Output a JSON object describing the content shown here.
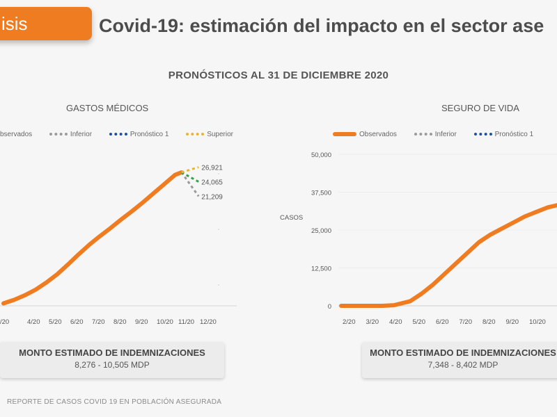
{
  "header": {
    "tab_label": "isis",
    "title": "Covid-19: estimación del impacto en el sector ase",
    "subtitle": "PRONÓSTICOS AL 31 DE DICIEMBRE 2020"
  },
  "footer": "REPORTE DE CASOS COVID 19 EN POBLACIÓN ASEGURADA",
  "colors": {
    "observed": "#f07c21",
    "inferior": "#9a9a9a",
    "pronostico": "#1f4fa0",
    "superior": "#e6b62d",
    "green": "#3aa046"
  },
  "chart_data": [
    {
      "type": "line",
      "title": "GASTOS MÉDICOS",
      "legend": [
        "bservados",
        "Inferior",
        "Pronóstico 1",
        "Superior"
      ],
      "x_tick_labels": [
        "/20",
        "4/20",
        "5/20",
        "6/20",
        "7/20",
        "8/20",
        "9/20",
        "10/20",
        "11/20",
        "12/20"
      ],
      "series": [
        {
          "name": "bservados",
          "x": [
            0,
            0.5,
            1,
            1.5,
            2,
            2.5,
            3,
            3.5,
            4,
            4.5,
            5,
            5.5,
            6,
            6.5,
            7,
            7.5,
            8,
            8.3
          ],
          "y": [
            200,
            900,
            1800,
            2900,
            4300,
            5900,
            7800,
            9800,
            11700,
            13400,
            15000,
            16700,
            18300,
            20000,
            21800,
            23600,
            25400,
            25900
          ]
        },
        {
          "name": "Inferior",
          "x": [
            8.3,
            9.1
          ],
          "y": [
            25900,
            21209
          ],
          "end_label": "21,209"
        },
        {
          "name": "Pronóstico 1",
          "x": [
            8.3,
            9.1
          ],
          "y": [
            25900,
            24065
          ],
          "end_label": "24,065"
        },
        {
          "name": "Superior",
          "x": [
            8.3,
            9.1
          ],
          "y": [
            25900,
            26921
          ],
          "end_label": "26,921"
        }
      ],
      "indemnizaciones": {
        "label": "MONTO ESTIMADO DE INDEMNIZACIONES",
        "value": "8,276 - 10,505 MDP"
      }
    },
    {
      "type": "line",
      "title": "SEGURO DE VIDA",
      "legend": [
        "Observados",
        "Inferior",
        "Pronóstico 1"
      ],
      "ylabel": "CASOS",
      "ylim": [
        0,
        50000
      ],
      "y_tick_labels": [
        "50,000",
        "37,500",
        "25,000",
        "12,500",
        "0"
      ],
      "x_tick_labels": [
        "2/20",
        "3/20",
        "4/20",
        "5/20",
        "6/20",
        "7/20",
        "8/20",
        "9/20",
        "10/20"
      ],
      "series": [
        {
          "name": "Observados",
          "x": [
            0,
            1,
            1.8,
            2.3,
            3,
            3.5,
            4,
            4.5,
            5,
            5.5,
            6,
            6.5,
            7,
            7.5,
            8,
            8.5,
            9,
            9.4
          ],
          "y": [
            0,
            0,
            0,
            200,
            1500,
            4000,
            7000,
            10500,
            14000,
            17500,
            21000,
            23500,
            25500,
            27500,
            29500,
            31000,
            32500,
            33200
          ]
        }
      ],
      "indemnizaciones": {
        "label": "MONTO ESTIMADO DE INDEMNIZACIONES",
        "value": "7,348 - 8,402 MDP"
      }
    }
  ]
}
